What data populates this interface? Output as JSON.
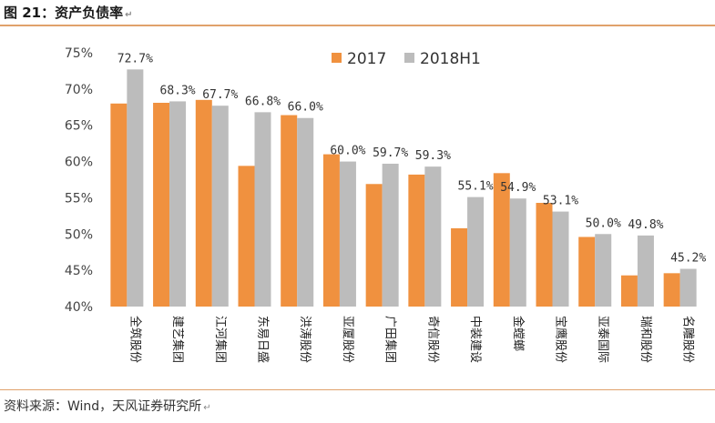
{
  "figure": {
    "caption": "图 21：资产负债率",
    "source": "资料来源：Wind，天风证券研究所",
    "para_mark": "↵"
  },
  "colors": {
    "series_2017": "#f0913f",
    "series_2018H1": "#bcbcbc",
    "rule": "#e0a16b"
  },
  "chart_data": {
    "type": "bar",
    "title": "资产负债率",
    "xlabel": "",
    "ylabel": "",
    "ylim": [
      40,
      75
    ],
    "yticks": [
      40,
      45,
      50,
      55,
      60,
      65,
      70,
      75
    ],
    "ytick_suffix": "%",
    "legend_position": "top-right",
    "grid": false,
    "categories": [
      "全筑股份",
      "建艺集团",
      "江河集团",
      "东易日盛",
      "洪涛股份",
      "亚厦股份",
      "广田集团",
      "奇信股份",
      "中装建设",
      "金螳螂",
      "宝鹰股份",
      "亚泰国际",
      "瑞和股份",
      "名雕股份"
    ],
    "series": [
      {
        "name": "2017",
        "values": [
          68.0,
          68.1,
          68.5,
          59.4,
          66.4,
          61.0,
          56.9,
          58.2,
          50.8,
          58.4,
          54.3,
          49.6,
          44.3,
          44.6
        ]
      },
      {
        "name": "2018H1",
        "values": [
          72.7,
          68.3,
          67.7,
          66.8,
          66.0,
          60.0,
          59.7,
          59.3,
          55.1,
          54.9,
          53.1,
          50.0,
          49.8,
          45.2
        ]
      }
    ],
    "data_labels": [
      "72.7%",
      "68.3%",
      "67.7%",
      "66.8%",
      "66.0%",
      "60.0%",
      "59.7%",
      "59.3%",
      "55.1%",
      "54.9%",
      "53.1%",
      "50.0%",
      "49.8%",
      "45.2%"
    ]
  }
}
